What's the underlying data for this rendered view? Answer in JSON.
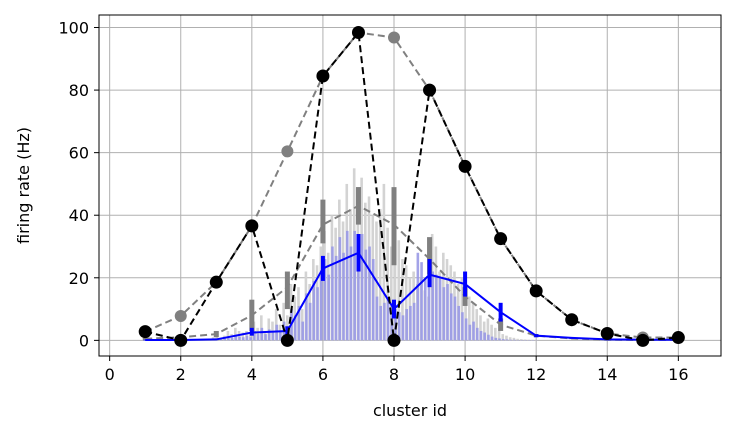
{
  "chart_data": {
    "type": "line",
    "xlabel": "cluster id",
    "ylabel": "firing rate (Hz)",
    "xlim": [
      -0.3,
      17.2
    ],
    "ylim": [
      -5,
      104
    ],
    "xticks": [
      0,
      2,
      4,
      6,
      8,
      10,
      12,
      14,
      16
    ],
    "yticks": [
      0,
      20,
      40,
      60,
      80,
      100
    ],
    "grid": true,
    "colors": {
      "black_series": "#000000",
      "gray_series": "#808080",
      "blue_series": "#0000ff",
      "light_bars": "#d3d3d3",
      "blue_bars": "#9999e6"
    },
    "series": [
      {
        "style": "black dashed line with circle markers",
        "x": [
          1,
          2,
          3,
          4,
          5,
          6,
          7,
          8,
          9,
          10,
          11,
          12,
          13,
          14,
          15,
          16
        ],
        "y": [
          2.8,
          0,
          18.6,
          36.6,
          0,
          84.5,
          98.4,
          0,
          80,
          55.6,
          32.5,
          15.8,
          6.6,
          2.2,
          0,
          0.9
        ]
      },
      {
        "style": "gray dashed line with circle markers",
        "x": [
          1,
          2,
          3,
          4,
          5,
          6,
          7,
          8,
          9,
          10,
          11,
          12,
          13,
          14,
          15,
          16
        ],
        "y": [
          2.8,
          7.8,
          18.6,
          36.6,
          60.4,
          84.5,
          98.4,
          96.8,
          80,
          55.6,
          32.5,
          15.8,
          6.6,
          2.2,
          0.9,
          0.9
        ]
      },
      {
        "style": "gray dashed mean line with gray error bars",
        "x": [
          1,
          2,
          3,
          4,
          5,
          6,
          7,
          8,
          9,
          10,
          11,
          12,
          13,
          14,
          15,
          16
        ],
        "y": [
          0.5,
          1,
          2,
          8,
          17,
          37,
          43,
          37,
          26,
          14,
          5,
          1.5,
          0.6,
          0.2,
          0.1,
          0.1
        ],
        "err_low": [
          0.2,
          0.5,
          1,
          3,
          10,
          31,
          37,
          24,
          21,
          11,
          3,
          1,
          0.4,
          0.1,
          0.05,
          0.05
        ],
        "err_high": [
          0.8,
          1.5,
          3,
          13,
          22,
          45,
          49,
          49,
          33,
          17,
          7,
          2,
          0.8,
          0.3,
          0.15,
          0.15
        ]
      },
      {
        "style": "blue solid mean line with blue error bars",
        "x": [
          1,
          2,
          3,
          4,
          5,
          6,
          7,
          8,
          9,
          10,
          11,
          12,
          13,
          14,
          15,
          16
        ],
        "y": [
          0.1,
          0.1,
          0.3,
          2.5,
          3,
          23,
          28,
          10,
          21,
          18,
          9,
          1.5,
          0.8,
          0.3,
          0.2,
          0.2
        ],
        "err_low": [
          0,
          0,
          0.1,
          1.5,
          1.5,
          19,
          22,
          7,
          17,
          14,
          6,
          1,
          0.5,
          0.1,
          0.1,
          0.1
        ],
        "err_high": [
          0.2,
          0.2,
          0.5,
          4,
          4.5,
          27,
          34,
          13,
          26,
          22,
          12,
          2,
          1,
          0.5,
          0.3,
          0.3
        ]
      }
    ],
    "bars": {
      "description": "dense per-trial bars around each cluster id (light gray and blue)",
      "values_light": [
        0.3,
        0.5,
        1,
        2,
        0.8,
        1.5,
        3,
        2,
        4,
        3,
        2.5,
        3,
        2,
        6,
        4,
        8,
        3,
        7,
        6,
        10,
        5,
        12,
        8,
        18,
        14,
        17,
        10,
        22,
        18,
        26,
        24,
        30,
        35,
        28,
        40,
        36,
        45,
        38,
        50,
        42,
        55,
        48,
        52,
        44,
        46,
        40,
        38,
        42,
        50,
        36,
        30,
        28,
        32,
        26,
        24,
        20,
        22,
        18,
        20,
        16,
        14,
        34,
        30,
        22,
        28,
        26,
        24,
        22,
        18,
        20,
        16,
        14,
        12,
        10,
        8,
        6,
        7,
        5,
        4,
        3,
        2,
        1.5,
        1,
        0.8,
        0.5,
        0.4,
        0.3,
        0.2,
        0.2,
        0.1
      ],
      "values_blue": [
        0.1,
        0.2,
        0.3,
        0.5,
        0.3,
        0.6,
        1,
        0.8,
        1.5,
        1.2,
        1,
        1.5,
        1,
        3,
        2,
        4,
        2,
        3.5,
        3,
        5,
        3,
        6,
        4,
        10,
        8,
        11,
        6,
        15,
        12,
        19,
        17,
        22,
        26,
        21,
        30,
        27,
        33,
        28,
        35,
        30,
        35,
        31,
        34,
        29,
        30,
        26,
        14,
        11,
        12,
        13,
        11,
        10,
        9,
        8,
        10,
        11,
        12,
        28,
        25,
        20,
        24,
        22,
        21,
        20,
        17,
        18,
        15,
        14,
        11,
        9,
        7,
        5,
        6,
        4,
        3,
        2.5,
        1.8,
        1.2,
        0.8,
        0.6,
        0.4,
        0.3,
        0.2,
        0.2,
        0.1,
        0.1,
        0.1,
        0.1,
        0.1,
        0.05
      ]
    }
  }
}
